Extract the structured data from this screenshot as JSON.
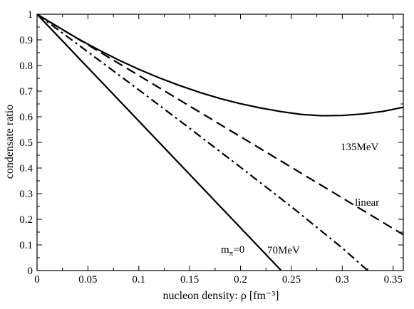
{
  "chart_data": {
    "type": "line",
    "title": "",
    "xlabel": "nucleon density: ρ [fm⁻³]",
    "ylabel": "condensate ratio",
    "xlim": [
      0,
      0.36
    ],
    "ylim": [
      0,
      1
    ],
    "xticks": [
      0,
      0.05,
      0.1,
      0.15,
      0.2,
      0.25,
      0.3,
      0.35
    ],
    "xtick_labels": [
      "0",
      "0.05",
      "0.1",
      "0.15",
      "0.2",
      "0.25",
      "0.3",
      "0.35"
    ],
    "yticks": [
      0,
      0.1,
      0.2,
      0.3,
      0.4,
      0.5,
      0.6,
      0.7,
      0.8,
      0.9,
      1
    ],
    "ytick_labels": [
      "0",
      "0.1",
      "0.2",
      "0.3",
      "0.4",
      "0.5",
      "0.6",
      "0.7",
      "0.8",
      "0.9",
      "1"
    ],
    "grid": false,
    "legend": "none",
    "series": [
      {
        "name": "135MeV",
        "style": "solid",
        "x": [
          0,
          0.02,
          0.04,
          0.06,
          0.08,
          0.1,
          0.12,
          0.14,
          0.16,
          0.18,
          0.2,
          0.22,
          0.24,
          0.26,
          0.28,
          0.3,
          0.32,
          0.34,
          0.36
        ],
        "y": [
          1.0,
          0.952,
          0.905,
          0.862,
          0.822,
          0.785,
          0.752,
          0.722,
          0.695,
          0.671,
          0.651,
          0.634,
          0.62,
          0.609,
          0.604,
          0.605,
          0.611,
          0.621,
          0.637
        ]
      },
      {
        "name": "linear",
        "style": "dashed",
        "x": [
          0,
          0.36
        ],
        "y": [
          1.0,
          0.14
        ]
      },
      {
        "name": "70MeV",
        "style": "dashdot",
        "x": [
          0,
          0.05,
          0.1,
          0.15,
          0.2,
          0.25,
          0.3,
          0.325
        ],
        "y": [
          1.0,
          0.853,
          0.705,
          0.555,
          0.403,
          0.249,
          0.088,
          0.0
        ]
      },
      {
        "name": "m",
        "name_subscript": "π",
        "name_suffix": "=0",
        "style": "solid",
        "x": [
          0,
          0.24
        ],
        "y": [
          1.0,
          0.0
        ]
      }
    ]
  }
}
